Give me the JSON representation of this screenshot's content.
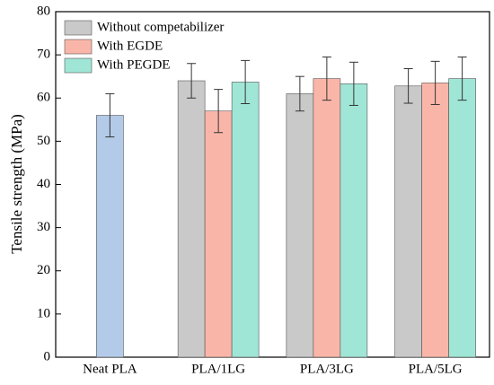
{
  "chart_data": {
    "type": "bar",
    "ylabel": "Tensile strength (MPa)",
    "categories": [
      "Neat PLA",
      "PLA/1LG",
      "PLA/3LG",
      "PLA/5LG"
    ],
    "series": [
      {
        "color": "#b3cbe9",
        "values": [
          56,
          null,
          null,
          null
        ],
        "errors": [
          5,
          null,
          null,
          null
        ]
      },
      {
        "name": "Without competabilizer",
        "color": "#c9c9c9",
        "values": [
          null,
          64,
          61,
          62.8
        ],
        "errors": [
          null,
          4,
          4,
          4
        ]
      },
      {
        "name": "With EGDE",
        "color": "#f9b6a8",
        "values": [
          null,
          57,
          64.5,
          63.5
        ],
        "errors": [
          null,
          5,
          5,
          5
        ]
      },
      {
        "name": "With PEGDE",
        "color": "#a0e6d6",
        "values": [
          null,
          63.7,
          63.3,
          64.5
        ],
        "errors": [
          null,
          5,
          5,
          5
        ]
      }
    ],
    "ylim": [
      0,
      80
    ],
    "yticks": [
      0,
      10,
      20,
      30,
      40,
      50,
      60,
      70,
      80
    ],
    "legend": "upper left"
  }
}
